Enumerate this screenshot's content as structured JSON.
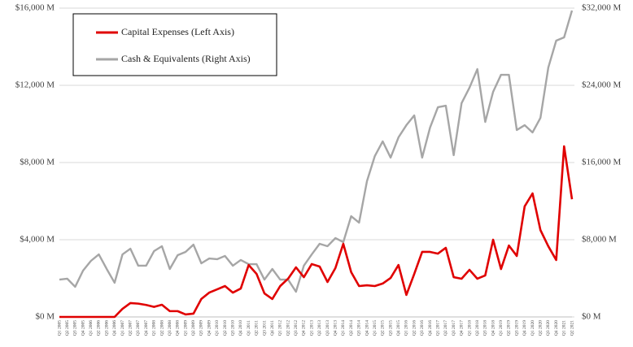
{
  "chart_data": {
    "type": "line",
    "categories": [
      "Q1 2005",
      "Q2 2005",
      "Q3 2005",
      "Q4 2005",
      "Q1 2006",
      "Q2 2006",
      "Q3 2006",
      "Q4 2006",
      "Q1 2007",
      "Q2 2007",
      "Q3 2007",
      "Q4 2007",
      "Q1 2008",
      "Q2 2008",
      "Q3 2008",
      "Q4 2008",
      "Q1 2009",
      "Q2 2009",
      "Q3 2009",
      "Q4 2009",
      "Q1 2010",
      "Q2 2010",
      "Q3 2010",
      "Q4 2010",
      "Q1 2011",
      "Q2 2011",
      "Q3 2011",
      "Q4 2011",
      "Q1 2012",
      "Q2 2012",
      "Q3 2012",
      "Q4 2012",
      "Q1 2013",
      "Q2 2013",
      "Q3 2013",
      "Q4 2013",
      "Q1 2014",
      "Q2 2014",
      "Q3 2014",
      "Q4 2014",
      "Q1 2015",
      "Q2 2015",
      "Q3 2015",
      "Q4 2015",
      "Q1 2016",
      "Q2 2016",
      "Q3 2016",
      "Q4 2016",
      "Q1 2017",
      "Q2 2017",
      "Q3 2017",
      "Q4 2017",
      "Q1 2018",
      "Q2 2018",
      "Q3 2018",
      "Q4 2018",
      "Q1 2019",
      "Q2 2019",
      "Q3 2019",
      "Q4 2019",
      "Q1 2020",
      "Q2 2020",
      "Q3 2020",
      "Q4 2020",
      "Q1 2021",
      "Q2 2021"
    ],
    "series": [
      {
        "name": "Capital Expenses (Left Axis)",
        "color": "#e00000",
        "axis": "y",
        "values": [
          0,
          0,
          0,
          0,
          0,
          0,
          0,
          0,
          420,
          720,
          690,
          620,
          520,
          630,
          300,
          300,
          130,
          170,
          930,
          1260,
          1430,
          1600,
          1260,
          1470,
          2690,
          2230,
          1220,
          930,
          1600,
          1980,
          2570,
          2060,
          2740,
          2610,
          1810,
          2530,
          3790,
          2320,
          1600,
          1640,
          1600,
          1730,
          2020,
          2690,
          1140,
          2230,
          3370,
          3370,
          3280,
          3580,
          2060,
          1980,
          2440,
          1980,
          2150,
          4000,
          2480,
          3700,
          3160,
          5730,
          6400,
          4500,
          3660,
          2950,
          8840,
          6100
        ]
      },
      {
        "name": "Cash & Equivalents (Right Axis)",
        "color": "#a6a6a6",
        "axis": "y2",
        "values": [
          3870,
          3960,
          3120,
          4800,
          5810,
          6480,
          4970,
          3540,
          6480,
          7070,
          5310,
          5310,
          6820,
          7330,
          4970,
          6400,
          6740,
          7490,
          5560,
          6060,
          5980,
          6320,
          5310,
          5900,
          5470,
          5470,
          3870,
          4970,
          3870,
          3870,
          2610,
          5310,
          6480,
          7580,
          7330,
          8170,
          7750,
          10440,
          9770,
          14060,
          16670,
          18190,
          16510,
          18610,
          19870,
          20880,
          16510,
          19620,
          21730,
          21890,
          16760,
          22150,
          23750,
          25680,
          20210,
          23330,
          25090,
          25090,
          19370,
          19870,
          19120,
          20630,
          25850,
          28630,
          28970,
          31750
        ]
      }
    ],
    "ylim": [
      0,
      16000
    ],
    "yticks": [
      {
        "value": 0,
        "label": "$0 M"
      },
      {
        "value": 4000,
        "label": "$4,000 M"
      },
      {
        "value": 8000,
        "label": "$8,000 M"
      },
      {
        "value": 12000,
        "label": "$12,000 M"
      },
      {
        "value": 16000,
        "label": "$16,000 M"
      }
    ],
    "y2lim": [
      0,
      32000
    ],
    "y2ticks": [
      {
        "value": 0,
        "label": "$0 M"
      },
      {
        "value": 8000,
        "label": "$8,000 M"
      },
      {
        "value": 16000,
        "label": "$16,000 M"
      },
      {
        "value": 24000,
        "label": "$24,000 M"
      },
      {
        "value": 32000,
        "label": "$32,000 M"
      }
    ],
    "grid": true,
    "legend": "top-left"
  }
}
